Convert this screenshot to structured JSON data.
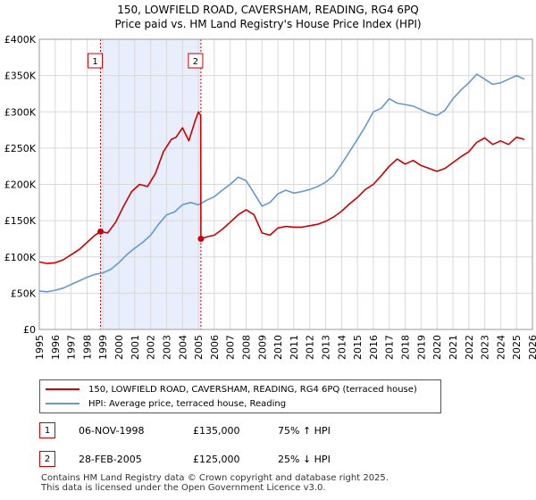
{
  "title_line1": "150, LOWFIELD ROAD, CAVERSHAM, READING, RG4 6PQ",
  "title_line2": "Price paid vs. HM Land Registry's House Price Index (HPI)",
  "colors": {
    "property": "#cc0000",
    "hpi": "#6699cc",
    "shade": "#e8eefb",
    "marker_border": "#cc0000"
  },
  "chart_data": {
    "type": "line",
    "xlim": [
      1995,
      2026
    ],
    "ylim": [
      0,
      400000
    ],
    "y_ticks": [
      {
        "value": 0,
        "label": "£0"
      },
      {
        "value": 50000,
        "label": "£50K"
      },
      {
        "value": 100000,
        "label": "£100K"
      },
      {
        "value": 150000,
        "label": "£150K"
      },
      {
        "value": 200000,
        "label": "£200K"
      },
      {
        "value": 250000,
        "label": "£250K"
      },
      {
        "value": 300000,
        "label": "£300K"
      },
      {
        "value": 350000,
        "label": "£350K"
      },
      {
        "value": 400000,
        "label": "£400K"
      }
    ],
    "x_ticks": [
      "1995",
      "1996",
      "1997",
      "1998",
      "1999",
      "2000",
      "2001",
      "2002",
      "2003",
      "2004",
      "2005",
      "2006",
      "2007",
      "2008",
      "2009",
      "2010",
      "2011",
      "2012",
      "2013",
      "2014",
      "2015",
      "2016",
      "2017",
      "2018",
      "2019",
      "2020",
      "2021",
      "2022",
      "2023",
      "2024",
      "2025",
      "2026"
    ],
    "shaded_range": [
      1998.85,
      2005.16
    ],
    "series": [
      {
        "name": "150, LOWFIELD ROAD, CAVERSHAM, READING, RG4 6PQ (terraced house)",
        "color": "#cc0000",
        "x": [
          1995.0,
          1995.5,
          1996.0,
          1996.5,
          1997.0,
          1997.5,
          1998.0,
          1998.5,
          1998.85,
          1999.3,
          1999.8,
          2000.3,
          2000.8,
          2001.3,
          2001.8,
          2002.3,
          2002.8,
          2003.3,
          2003.6,
          2004.0,
          2004.4,
          2004.8,
          2005.0,
          2005.15,
          2005.16,
          2005.6,
          2006.0,
          2006.5,
          2007.0,
          2007.5,
          2008.0,
          2008.5,
          2009.0,
          2009.5,
          2010.0,
          2010.5,
          2011.0,
          2011.5,
          2012.0,
          2012.5,
          2013.0,
          2013.5,
          2014.0,
          2014.5,
          2015.0,
          2015.5,
          2016.0,
          2016.5,
          2017.0,
          2017.5,
          2018.0,
          2018.5,
          2019.0,
          2019.5,
          2020.0,
          2020.5,
          2021.0,
          2021.5,
          2022.0,
          2022.5,
          2023.0,
          2023.5,
          2024.0,
          2024.5,
          2025.0,
          2025.5
        ],
        "y": [
          93000,
          91000,
          92000,
          96000,
          103000,
          110000,
          120000,
          130000,
          135000,
          133000,
          148000,
          170000,
          190000,
          200000,
          197000,
          215000,
          245000,
          262000,
          265000,
          278000,
          260000,
          288000,
          300000,
          295000,
          125000,
          128000,
          130000,
          138000,
          148000,
          158000,
          165000,
          158000,
          133000,
          130000,
          140000,
          142000,
          141000,
          141000,
          143000,
          145000,
          149000,
          155000,
          163000,
          173000,
          182000,
          193000,
          200000,
          212000,
          225000,
          235000,
          228000,
          233000,
          226000,
          222000,
          218000,
          222000,
          230000,
          238000,
          245000,
          258000,
          264000,
          255000,
          260000,
          255000,
          265000,
          262000
        ]
      },
      {
        "name": "HPI: Average price, terraced house, Reading",
        "color": "#6699cc",
        "x": [
          1995.0,
          1995.5,
          1996.0,
          1996.5,
          1997.0,
          1997.5,
          1998.0,
          1998.5,
          1999.0,
          1999.5,
          2000.0,
          2000.5,
          2001.0,
          2001.5,
          2002.0,
          2002.5,
          2003.0,
          2003.5,
          2004.0,
          2004.5,
          2005.0,
          2005.5,
          2006.0,
          2006.5,
          2007.0,
          2007.5,
          2008.0,
          2008.5,
          2009.0,
          2009.5,
          2010.0,
          2010.5,
          2011.0,
          2011.5,
          2012.0,
          2012.5,
          2013.0,
          2013.5,
          2014.0,
          2014.5,
          2015.0,
          2015.5,
          2016.0,
          2016.5,
          2017.0,
          2017.5,
          2018.0,
          2018.5,
          2019.0,
          2019.5,
          2020.0,
          2020.5,
          2021.0,
          2021.5,
          2022.0,
          2022.5,
          2023.0,
          2023.5,
          2024.0,
          2024.5,
          2025.0,
          2025.5
        ],
        "y": [
          53000,
          52000,
          54000,
          57000,
          62000,
          67000,
          72000,
          76000,
          78000,
          83000,
          92000,
          103000,
          112000,
          120000,
          130000,
          145000,
          158000,
          162000,
          172000,
          175000,
          172000,
          178000,
          183000,
          192000,
          200000,
          210000,
          205000,
          188000,
          170000,
          175000,
          187000,
          192000,
          188000,
          190000,
          193000,
          197000,
          203000,
          212000,
          228000,
          245000,
          262000,
          280000,
          300000,
          305000,
          318000,
          312000,
          310000,
          308000,
          303000,
          298000,
          295000,
          302000,
          318000,
          330000,
          340000,
          352000,
          345000,
          338000,
          340000,
          345000,
          350000,
          345000
        ]
      }
    ],
    "points": [
      {
        "x": 1998.85,
        "y": 135000
      },
      {
        "x": 2005.16,
        "y": 125000
      }
    ],
    "markers": [
      {
        "label": "1",
        "x": 1998.85
      },
      {
        "label": "2",
        "x": 2005.16
      }
    ]
  },
  "legend": {
    "property_label": "150, LOWFIELD ROAD, CAVERSHAM, READING, RG4 6PQ (terraced house)",
    "hpi_label": "HPI: Average price, terraced house, Reading"
  },
  "transactions": [
    {
      "num": "1",
      "date": "06-NOV-1998",
      "price": "£135,000",
      "hpi": "75% ↑ HPI"
    },
    {
      "num": "2",
      "date": "28-FEB-2005",
      "price": "£125,000",
      "hpi": "25% ↓ HPI"
    }
  ],
  "footer_line1": "Contains HM Land Registry data © Crown copyright and database right 2025.",
  "footer_line2": "This data is licensed under the Open Government Licence v3.0."
}
